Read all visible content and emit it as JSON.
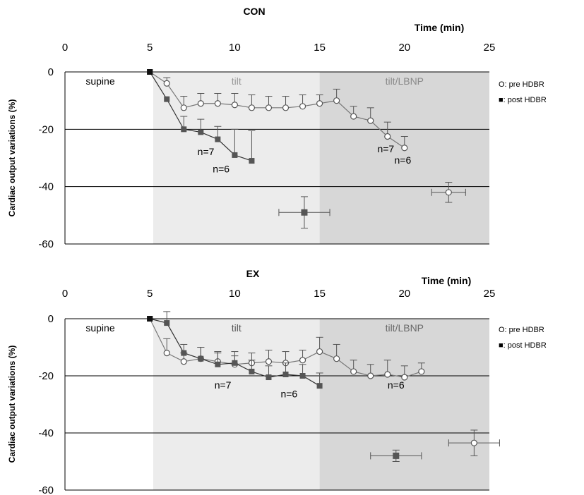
{
  "chart_data": [
    {
      "type": "line",
      "title": "CON",
      "xlabel": "Time (min)",
      "ylabel": "Cardiac output variations (%)",
      "xlim": [
        0,
        25
      ],
      "ylim": [
        -60,
        0
      ],
      "xticks": [
        "0",
        "5",
        "10",
        "15",
        "20",
        "25"
      ],
      "yticks": [
        "0",
        "-20",
        "-40",
        "-60"
      ],
      "grid": "horizontal",
      "legend_position": "right",
      "regions": [
        {
          "label": "supine",
          "x0": 0,
          "x1": 5.2,
          "color": "#ffffff",
          "text_color": "#000000"
        },
        {
          "label": "tilt",
          "x0": 5.2,
          "x1": 15,
          "color": "#ececec",
          "text_color": "#9a9a9a"
        },
        {
          "label": "tilt/LBNP",
          "x0": 15,
          "x1": 25,
          "color": "#d7d7d7",
          "text_color": "#8a8a8a"
        }
      ],
      "series": [
        {
          "name": "O: pre HDBR",
          "marker": "circle",
          "x": [
            5,
            6,
            7,
            8,
            9,
            10,
            11,
            12,
            13,
            14,
            15,
            16,
            17,
            18,
            19,
            20
          ],
          "y": [
            0,
            -4,
            -12.5,
            -11,
            -11,
            -11.5,
            -12.5,
            -12.5,
            -12.5,
            -12,
            -11,
            -10,
            -15.5,
            -17,
            -22.5,
            -26.5
          ],
          "err": [
            0,
            2,
            4,
            3.5,
            3.5,
            4,
            4.5,
            4,
            4,
            4,
            3,
            4,
            3.5,
            4.5,
            5,
            4
          ],
          "outlier": {
            "x": 22.6,
            "y": -42,
            "xerr": 1,
            "yerr": 3.5
          }
        },
        {
          "name": "■: post HDBR",
          "marker": "square",
          "x": [
            5,
            6,
            7,
            8,
            9,
            10,
            11
          ],
          "y": [
            0,
            -9.5,
            -20,
            -21,
            -23.5,
            -29,
            -31
          ],
          "err": [
            0,
            0,
            4.5,
            4.5,
            4.5,
            9,
            10.5
          ],
          "outlier": {
            "x": 14.1,
            "y": -49,
            "xerr": 1.5,
            "yerr": 5.5
          }
        }
      ],
      "annotations": [
        {
          "text": "n=7",
          "x": 8.3,
          "y": -29
        },
        {
          "text": "n=6",
          "x": 9.2,
          "y": -35
        },
        {
          "text": "n=7",
          "x": 18.9,
          "y": -28
        },
        {
          "text": "n=6",
          "x": 19.9,
          "y": -32
        }
      ]
    },
    {
      "type": "line",
      "title": "EX",
      "xlabel": "Time (min)",
      "ylabel": "Cardiac output variations (%)",
      "xlim": [
        0,
        25
      ],
      "ylim": [
        -60,
        0
      ],
      "xticks": [
        "0",
        "5",
        "10",
        "15",
        "20",
        "25"
      ],
      "yticks": [
        "0",
        "-20",
        "-40",
        "-60"
      ],
      "grid": "horizontal",
      "legend_position": "right",
      "regions": [
        {
          "label": "supine",
          "x0": 0,
          "x1": 5.2,
          "color": "#ffffff",
          "text_color": "#000000"
        },
        {
          "label": "tilt",
          "x0": 5.2,
          "x1": 15,
          "color": "#ececec",
          "text_color": "#5a5a5a"
        },
        {
          "label": "tilt/LBNP",
          "x0": 15,
          "x1": 25,
          "color": "#d7d7d7",
          "text_color": "#6a6a6a"
        }
      ],
      "series": [
        {
          "name": "O: pre HDBR",
          "marker": "circle",
          "x": [
            5,
            6,
            7,
            8,
            9,
            10,
            11,
            12,
            13,
            14,
            15,
            16,
            17,
            18,
            19,
            20,
            21
          ],
          "y": [
            0,
            -12,
            -15,
            -14,
            -15,
            -16,
            -15.5,
            -15,
            -15.5,
            -14.5,
            -11.5,
            -14,
            -18.5,
            -20,
            -19.5,
            -20.5,
            -18.5
          ],
          "err": [
            0,
            5,
            3,
            4,
            3.5,
            3,
            3.5,
            4,
            4,
            3.5,
            5,
            5,
            4,
            4,
            5,
            4,
            3
          ],
          "outlier": {
            "x": 24.1,
            "y": -43.5,
            "xerr": 1.5,
            "yerr": 4.5
          }
        },
        {
          "name": "■: post HDBR",
          "marker": "square",
          "x": [
            5,
            6,
            7,
            8,
            9,
            10,
            11,
            12,
            13,
            14,
            15
          ],
          "y": [
            0,
            -1.5,
            -12,
            -14,
            -16,
            -15.5,
            -18.5,
            -20.5,
            -19.5,
            -20,
            -23.5
          ],
          "err": [
            0,
            4,
            3,
            4,
            4,
            4,
            4,
            4,
            4,
            4,
            4.5
          ],
          "outlier": {
            "x": 19.5,
            "y": -48,
            "xerr": 1.5,
            "yerr": 2
          }
        }
      ],
      "annotations": [
        {
          "text": "n=7",
          "x": 9.3,
          "y": -24.5
        },
        {
          "text": "n=6",
          "x": 13.2,
          "y": -27.5
        },
        {
          "text": "n=6",
          "x": 19.5,
          "y": -24.5
        }
      ]
    }
  ]
}
